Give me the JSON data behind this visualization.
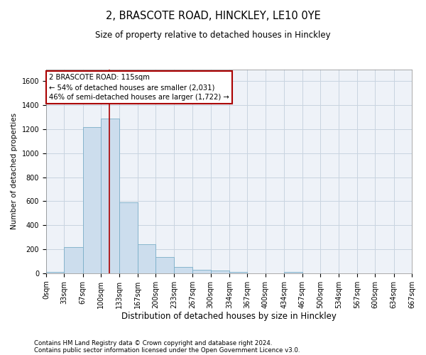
{
  "title": "2, BRASCOTE ROAD, HINCKLEY, LE10 0YE",
  "subtitle": "Size of property relative to detached houses in Hinckley",
  "xlabel": "Distribution of detached houses by size in Hinckley",
  "ylabel": "Number of detached properties",
  "footnote1": "Contains HM Land Registry data © Crown copyright and database right 2024.",
  "footnote2": "Contains public sector information licensed under the Open Government Licence v3.0.",
  "bar_color": "#ccdded",
  "bar_edge_color": "#7aaec8",
  "grid_color": "#c8d4e0",
  "background_color": "#eef2f8",
  "fig_background": "#ffffff",
  "vline_x": 115,
  "vline_color": "#aa0000",
  "annotation_text": "2 BRASCOTE ROAD: 115sqm\n← 54% of detached houses are smaller (2,031)\n46% of semi-detached houses are larger (1,722) →",
  "annotation_box_color": "#aa0000",
  "bin_edges": [
    0,
    33,
    67,
    100,
    133,
    167,
    200,
    233,
    267,
    300,
    334,
    367,
    400,
    434,
    467,
    500,
    534,
    567,
    600,
    634,
    667
  ],
  "bar_heights": [
    10,
    220,
    1220,
    1290,
    590,
    240,
    135,
    50,
    30,
    25,
    10,
    0,
    0,
    12,
    0,
    0,
    0,
    0,
    0,
    0
  ],
  "ylim": [
    0,
    1700
  ],
  "yticks": [
    0,
    200,
    400,
    600,
    800,
    1000,
    1200,
    1400,
    1600
  ],
  "title_fontsize": 10.5,
  "subtitle_fontsize": 8.5,
  "xlabel_fontsize": 8.5,
  "ylabel_fontsize": 7.5,
  "tick_fontsize": 7,
  "annot_fontsize": 7.2,
  "footnote_fontsize": 6.2
}
